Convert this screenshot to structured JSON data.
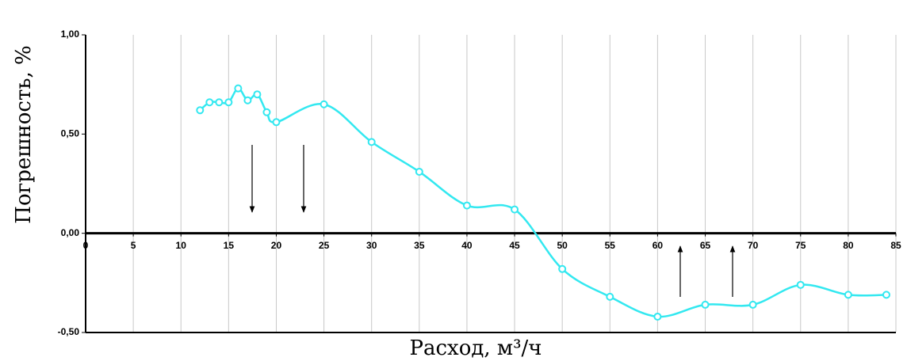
{
  "chart_data": {
    "type": "line",
    "x_label": "Расход, м³/ч",
    "y_label": "Погрешность, %",
    "x": [
      12,
      13,
      14,
      15,
      16,
      17,
      18,
      19,
      20,
      25,
      30,
      35,
      40,
      45,
      50,
      55,
      60,
      65,
      70,
      75,
      80,
      84
    ],
    "values": [
      0.62,
      0.66,
      0.66,
      0.66,
      0.73,
      0.67,
      0.7,
      0.61,
      0.56,
      0.65,
      0.46,
      0.31,
      0.14,
      0.12,
      -0.18,
      -0.32,
      -0.42,
      -0.36,
      -0.36,
      -0.26,
      -0.31,
      -0.31
    ],
    "color": "#33e8f0",
    "xlim": [
      0,
      85
    ],
    "xticks": [
      0,
      5,
      10,
      15,
      20,
      25,
      30,
      35,
      40,
      45,
      50,
      55,
      60,
      65,
      70,
      75,
      80,
      85
    ],
    "ylim": [
      -0.5,
      1.0
    ],
    "yticks": [
      {
        "value": 1.0,
        "label": "1,00"
      },
      {
        "value": 0.5,
        "label": "0,50"
      },
      {
        "value": 0.0,
        "label": "0,00"
      },
      {
        "value": -0.5,
        "label": "-0,50"
      }
    ],
    "grid": true
  }
}
